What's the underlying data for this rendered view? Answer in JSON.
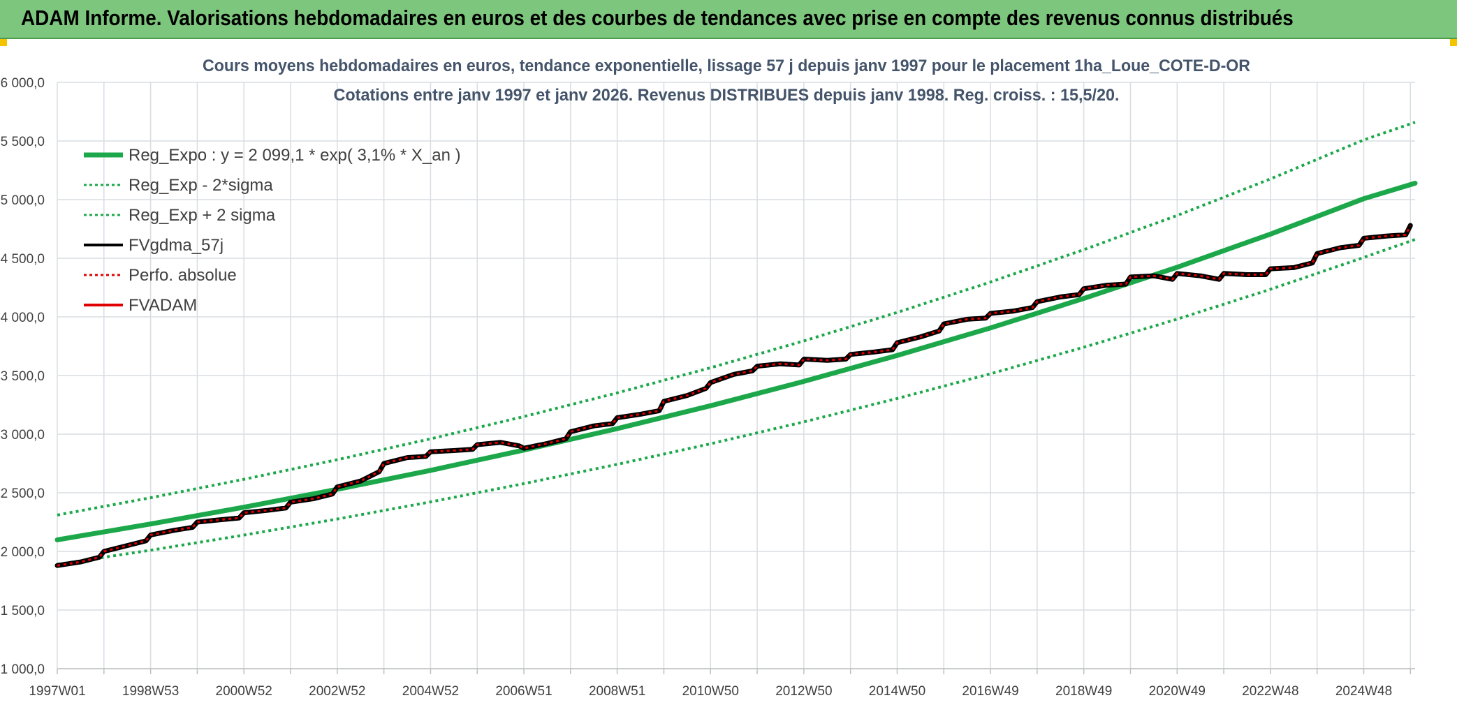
{
  "banner": {
    "title": "ADAM Informe. Valorisations hebdomadaires en euros et des courbes de tendances avec prise en compte des revenus connus distribués",
    "background": "#7dc67d"
  },
  "chart_data": {
    "type": "line",
    "title_line1": "Cours moyens hebdomadaires en euros, tendance exponentielle, lissage 57 j depuis janv 1997 pour le placement 1ha_Loue_COTE-D-OR",
    "title_line2": "Cotations entre janv 1997 et janv 2026. Revenus DISTRIBUES depuis janv 1998. Reg. croiss. : 15,5/20.",
    "xlabel": "",
    "ylabel": "",
    "ylim": [
      1000,
      6000
    ],
    "xlim": [
      1997.0,
      2026.1
    ],
    "y_ticks": [
      1000,
      1500,
      2000,
      2500,
      3000,
      3500,
      4000,
      4500,
      5000,
      5500,
      6000
    ],
    "y_tick_labels": [
      "1 000,0",
      "1 500,0",
      "2 000,0",
      "2 500,0",
      "3 000,0",
      "3 500,0",
      "4 000,0",
      "4 500,0",
      "5 000,0",
      "5 500,0",
      "6 000,0"
    ],
    "x_ticks": [
      1997.0,
      1998.0,
      1999.0,
      2000.0,
      2001.0,
      2002.0,
      2003.0,
      2004.0,
      2005.0,
      2006.0,
      2007.0,
      2008.0,
      2009.0,
      2010.0,
      2011.0,
      2012.0,
      2013.0,
      2014.0,
      2015.0,
      2016.0,
      2017.0,
      2018.0,
      2019.0,
      2020.0,
      2021.0,
      2022.0,
      2023.0,
      2024.0,
      2025.0,
      2026.0
    ],
    "x_tick_labels": [
      {
        "x": 1997.0,
        "label": "1997W01"
      },
      {
        "x": 1999.0,
        "label": "1998W53"
      },
      {
        "x": 2001.0,
        "label": "2000W52"
      },
      {
        "x": 2003.0,
        "label": "2002W52"
      },
      {
        "x": 2005.0,
        "label": "2004W52"
      },
      {
        "x": 2007.0,
        "label": "2006W51"
      },
      {
        "x": 2009.0,
        "label": "2008W51"
      },
      {
        "x": 2011.0,
        "label": "2010W50"
      },
      {
        "x": 2013.0,
        "label": "2012W50"
      },
      {
        "x": 2015.0,
        "label": "2014W50"
      },
      {
        "x": 2017.0,
        "label": "2016W49"
      },
      {
        "x": 2019.0,
        "label": "2018W49"
      },
      {
        "x": 2021.0,
        "label": "2020W49"
      },
      {
        "x": 2023.0,
        "label": "2022W48"
      },
      {
        "x": 2025.0,
        "label": "2024W48"
      }
    ],
    "grid": true,
    "legend_position": "top-left",
    "series": [
      {
        "name": "Reg_Expo : y = 2 099,1 * exp( 3,1% *  X_an )",
        "color": "#1ca84a",
        "style": "solid",
        "width": 7,
        "x": [
          1997,
          1999,
          2001,
          2003,
          2005,
          2007,
          2009,
          2011,
          2013,
          2015,
          2017,
          2019,
          2021,
          2023,
          2025,
          2026.1
        ],
        "values": [
          2099,
          2234,
          2377,
          2529,
          2691,
          2864,
          3047,
          3242,
          3450,
          3671,
          3906,
          4157,
          4423,
          4706,
          5008,
          5140
        ]
      },
      {
        "name": "Reg_Exp - 2*sigma",
        "color": "#1ca84a",
        "style": "dotted",
        "width": 4,
        "x": [
          1997,
          1999,
          2001,
          2003,
          2005,
          2007,
          2009,
          2011,
          2013,
          2015,
          2017,
          2019,
          2021,
          2023,
          2025,
          2026.1
        ],
        "values": [
          1890,
          2010,
          2139,
          2276,
          2422,
          2578,
          2742,
          2918,
          3105,
          3304,
          3515,
          3741,
          3981,
          4235,
          4507,
          4660
        ]
      },
      {
        "name": "Reg_Exp + 2 sigma",
        "color": "#1ca84a",
        "style": "dotted",
        "width": 4,
        "x": [
          1997,
          1999,
          2001,
          2003,
          2005,
          2007,
          2009,
          2011,
          2013,
          2015,
          2017,
          2019,
          2021,
          2023,
          2025,
          2026.1
        ],
        "values": [
          2310,
          2458,
          2615,
          2782,
          2960,
          3150,
          3352,
          3566,
          3795,
          4038,
          4297,
          4573,
          4865,
          5177,
          5509,
          5660
        ]
      },
      {
        "name": "FVgdma_57j",
        "color": "#000000",
        "style": "solid",
        "width": 4,
        "x": [
          1997.0,
          1997.5,
          1997.9,
          1998.0,
          1998.5,
          1998.9,
          1999.0,
          1999.5,
          1999.9,
          2000.0,
          2000.5,
          2000.9,
          2001.0,
          2001.5,
          2001.9,
          2002.0,
          2002.5,
          2002.9,
          2003.0,
          2003.5,
          2003.9,
          2004.0,
          2004.5,
          2004.9,
          2005.0,
          2005.5,
          2005.9,
          2006.0,
          2006.5,
          2006.9,
          2007.0,
          2007.5,
          2007.9,
          2008.0,
          2008.5,
          2008.9,
          2009.0,
          2009.5,
          2009.9,
          2010.0,
          2010.5,
          2010.9,
          2011.0,
          2011.5,
          2011.9,
          2012.0,
          2012.5,
          2012.9,
          2013.0,
          2013.5,
          2013.9,
          2014.0,
          2014.5,
          2014.9,
          2015.0,
          2015.5,
          2015.9,
          2016.0,
          2016.5,
          2016.9,
          2017.0,
          2017.5,
          2017.9,
          2018.0,
          2018.5,
          2018.9,
          2019.0,
          2019.5,
          2019.9,
          2020.0,
          2020.5,
          2020.9,
          2021.0,
          2021.5,
          2021.9,
          2022.0,
          2022.5,
          2022.9,
          2023.0,
          2023.5,
          2023.9,
          2024.0,
          2024.5,
          2024.9,
          2025.0,
          2025.5,
          2025.9,
          2026.0
        ],
        "values": [
          1880,
          1910,
          1950,
          2000,
          2050,
          2090,
          2140,
          2180,
          2205,
          2250,
          2270,
          2285,
          2330,
          2350,
          2370,
          2420,
          2450,
          2490,
          2550,
          2600,
          2680,
          2750,
          2800,
          2810,
          2850,
          2860,
          2870,
          2910,
          2930,
          2900,
          2880,
          2920,
          2960,
          3020,
          3070,
          3090,
          3140,
          3170,
          3200,
          3280,
          3330,
          3390,
          3440,
          3510,
          3540,
          3580,
          3600,
          3590,
          3640,
          3630,
          3640,
          3680,
          3700,
          3720,
          3780,
          3830,
          3880,
          3940,
          3980,
          3990,
          4030,
          4050,
          4080,
          4130,
          4170,
          4190,
          4240,
          4270,
          4280,
          4340,
          4350,
          4320,
          4370,
          4350,
          4320,
          4370,
          4360,
          4360,
          4410,
          4420,
          4460,
          4540,
          4590,
          4610,
          4670,
          4690,
          4700,
          4780
        ]
      },
      {
        "name": "Perfo. absolue",
        "color": "#e00000",
        "style": "dotted",
        "width": 3,
        "x": [
          1997.0,
          1997.5,
          1997.9,
          1998.0,
          1998.5,
          1998.9,
          1999.0,
          1999.5,
          1999.9,
          2000.0,
          2000.5,
          2000.9,
          2001.0,
          2001.5,
          2001.9,
          2002.0,
          2002.5,
          2002.9,
          2003.0,
          2003.5,
          2003.9,
          2004.0,
          2004.5,
          2004.9,
          2005.0,
          2005.5,
          2005.9,
          2006.0,
          2006.5,
          2006.9,
          2007.0,
          2007.5,
          2007.9,
          2008.0,
          2008.5,
          2008.9,
          2009.0,
          2009.5,
          2009.9,
          2010.0,
          2010.5,
          2010.9,
          2011.0,
          2011.5,
          2011.9,
          2012.0,
          2012.5,
          2012.9,
          2013.0,
          2013.5,
          2013.9,
          2014.0,
          2014.5,
          2014.9,
          2015.0,
          2015.5,
          2015.9,
          2016.0,
          2016.5,
          2016.9,
          2017.0,
          2017.5,
          2017.9,
          2018.0,
          2018.5,
          2018.9,
          2019.0,
          2019.5,
          2019.9,
          2020.0,
          2020.5,
          2020.9,
          2021.0,
          2021.5,
          2021.9,
          2022.0,
          2022.5,
          2022.9,
          2023.0,
          2023.5,
          2023.9,
          2024.0,
          2024.5,
          2024.9,
          2025.0,
          2025.5,
          2025.9,
          2026.0
        ],
        "values": [
          1880,
          1910,
          1950,
          2000,
          2050,
          2090,
          2140,
          2180,
          2205,
          2250,
          2270,
          2285,
          2330,
          2350,
          2370,
          2420,
          2450,
          2490,
          2550,
          2600,
          2680,
          2750,
          2800,
          2810,
          2850,
          2860,
          2870,
          2910,
          2930,
          2900,
          2880,
          2920,
          2960,
          3020,
          3070,
          3090,
          3140,
          3170,
          3200,
          3280,
          3330,
          3390,
          3440,
          3510,
          3540,
          3580,
          3600,
          3590,
          3640,
          3630,
          3640,
          3680,
          3700,
          3720,
          3780,
          3830,
          3880,
          3940,
          3980,
          3990,
          4030,
          4050,
          4080,
          4130,
          4170,
          4190,
          4240,
          4270,
          4280,
          4340,
          4350,
          4320,
          4370,
          4350,
          4320,
          4370,
          4360,
          4360,
          4410,
          4420,
          4460,
          4540,
          4590,
          4610,
          4670,
          4690,
          4700,
          4780
        ]
      },
      {
        "name": "FVADAM",
        "color": "#e00000",
        "style": "solid",
        "width": 5,
        "x": [
          1997.0,
          1997.5,
          1997.9,
          1998.0,
          1998.5,
          1998.9,
          1999.0,
          1999.5,
          1999.9,
          2000.0,
          2000.5,
          2000.9,
          2001.0,
          2001.5,
          2001.9,
          2002.0,
          2002.5,
          2002.9,
          2003.0,
          2003.5,
          2003.9,
          2004.0,
          2004.5,
          2004.9,
          2005.0,
          2005.5,
          2005.9,
          2006.0,
          2006.5,
          2006.9,
          2007.0,
          2007.5,
          2007.9,
          2008.0,
          2008.5,
          2008.9,
          2009.0,
          2009.5,
          2009.9,
          2010.0,
          2010.5,
          2010.9,
          2011.0,
          2011.5,
          2011.9,
          2012.0,
          2012.5,
          2012.9,
          2013.0,
          2013.5,
          2013.9,
          2014.0,
          2014.5,
          2014.9,
          2015.0,
          2015.5,
          2015.9,
          2016.0,
          2016.5,
          2016.9,
          2017.0,
          2017.5,
          2017.9,
          2018.0,
          2018.5,
          2018.9,
          2019.0,
          2019.5,
          2019.9,
          2020.0,
          2020.5,
          2020.9,
          2021.0,
          2021.5,
          2021.9,
          2022.0,
          2022.5,
          2022.9,
          2023.0,
          2023.5,
          2023.9,
          2024.0,
          2024.5,
          2024.9,
          2025.0,
          2025.5,
          2025.9,
          2026.0
        ],
        "values": [
          1880,
          1910,
          1950,
          2000,
          2050,
          2090,
          2140,
          2180,
          2205,
          2250,
          2270,
          2285,
          2330,
          2350,
          2370,
          2420,
          2450,
          2490,
          2550,
          2600,
          2680,
          2750,
          2800,
          2810,
          2850,
          2860,
          2870,
          2910,
          2930,
          2900,
          2880,
          2920,
          2960,
          3020,
          3070,
          3090,
          3140,
          3170,
          3200,
          3280,
          3330,
          3390,
          3440,
          3510,
          3540,
          3580,
          3600,
          3590,
          3640,
          3630,
          3640,
          3680,
          3700,
          3720,
          3780,
          3830,
          3880,
          3940,
          3980,
          3990,
          4030,
          4050,
          4080,
          4130,
          4170,
          4190,
          4240,
          4270,
          4280,
          4340,
          4350,
          4320,
          4370,
          4350,
          4320,
          4370,
          4360,
          4360,
          4410,
          4420,
          4460,
          4540,
          4590,
          4610,
          4670,
          4690,
          4700,
          4780
        ]
      }
    ]
  }
}
